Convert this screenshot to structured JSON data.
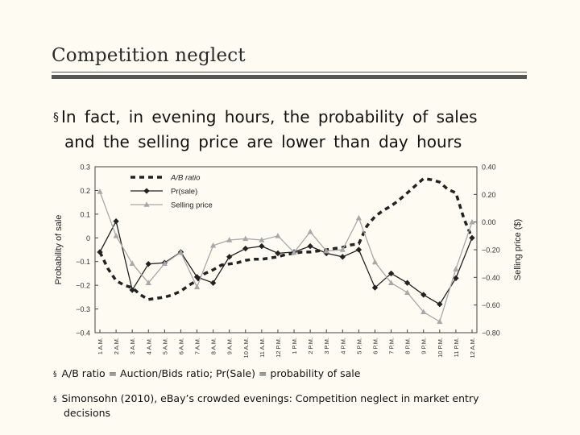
{
  "slide": {
    "title": "Competition neglect",
    "bullet": "In fact, in evening hours, the probability of sales",
    "bullet_cont": "and the selling price are lower than day hours",
    "note1": "A/B ratio = Auction/Bids ratio; Pr(Sale) = probability of sale",
    "note2": "Simonsohn (2010), eBay’s crowded evenings: Competition neglect in market entry",
    "note2_cont": "decisions"
  },
  "chart_data": {
    "type": "line",
    "categories": [
      "1 A.M.",
      "2 A.M.",
      "3 A.M.",
      "4 A.M.",
      "5 A.M.",
      "6 A.M.",
      "7 A.M.",
      "8 A.M.",
      "9 A.M.",
      "10 A.M.",
      "11 A.M.",
      "12 P.M.",
      "1 P.M.",
      "2 P.M.",
      "3 P.M.",
      "4 P.M.",
      "5 P.M.",
      "6 P.M.",
      "7 P.M.",
      "8 P.M.",
      "9 P.M.",
      "10 P.M.",
      "11 P.M.",
      "12 A.M."
    ],
    "ylabel": "Probability of sale",
    "y2label": "Selling price ($)",
    "ylim": [
      -0.4,
      0.3
    ],
    "y2lim": [
      -0.8,
      0.4
    ],
    "yticks": [
      "0.3",
      "0.2",
      "0.1",
      "0",
      "−0.1",
      "−0.2",
      "−0.3",
      "−0.4"
    ],
    "y2ticks": [
      "0.40",
      "0.20",
      "0.00",
      "−0.20",
      "−0.40",
      "−0.60",
      "−0.80"
    ],
    "legend_position": "top-left",
    "series": [
      {
        "name": "A/B ratio",
        "axis": "left",
        "style": "dashed-square",
        "color": "#222222",
        "x_offsets": [
          0,
          0.5,
          1,
          1.5,
          2,
          2.5,
          3,
          3.5,
          4,
          4.5,
          5,
          5.5,
          6,
          6.5,
          7,
          7.5,
          8,
          8.5,
          9,
          9.5,
          10,
          10.5,
          11,
          11.5,
          12,
          12.5,
          13,
          13.5,
          14,
          14.5,
          15,
          15.5,
          16,
          16.5,
          17,
          17.5,
          18,
          18.5,
          19,
          19.5,
          20,
          20.5,
          21,
          21.5,
          22,
          22.5,
          23
        ],
        "values": [
          -0.06,
          -0.13,
          -0.18,
          -0.2,
          -0.21,
          -0.24,
          -0.26,
          -0.255,
          -0.25,
          -0.24,
          -0.225,
          -0.2,
          -0.18,
          -0.15,
          -0.135,
          -0.115,
          -0.11,
          -0.105,
          -0.095,
          -0.09,
          -0.09,
          -0.085,
          -0.08,
          -0.07,
          -0.065,
          -0.06,
          -0.06,
          -0.055,
          -0.05,
          -0.045,
          -0.04,
          -0.03,
          -0.025,
          0.05,
          0.09,
          0.115,
          0.135,
          0.16,
          0.19,
          0.22,
          0.25,
          0.245,
          0.235,
          0.205,
          0.19,
          0.08,
          0.0
        ]
      },
      {
        "name": "Pr(sale)",
        "axis": "left",
        "style": "solid-diamond",
        "color": "#222222",
        "values": [
          -0.06,
          0.07,
          -0.22,
          -0.11,
          -0.105,
          -0.06,
          -0.165,
          -0.19,
          -0.08,
          -0.045,
          -0.035,
          -0.065,
          -0.06,
          -0.035,
          -0.065,
          -0.08,
          -0.05,
          -0.21,
          -0.15,
          -0.19,
          -0.24,
          -0.28,
          -0.17,
          -0.0
        ]
      },
      {
        "name": "Selling price",
        "axis": "right",
        "style": "solid-triangle",
        "color": "#a8a8a8",
        "values": [
          0.22,
          -0.1,
          -0.3,
          -0.44,
          -0.3,
          -0.22,
          -0.47,
          -0.17,
          -0.13,
          -0.12,
          -0.13,
          -0.1,
          -0.22,
          -0.07,
          -0.21,
          -0.2,
          0.03,
          -0.29,
          -0.44,
          -0.51,
          -0.65,
          -0.72,
          -0.34,
          -0.0
        ]
      }
    ]
  }
}
